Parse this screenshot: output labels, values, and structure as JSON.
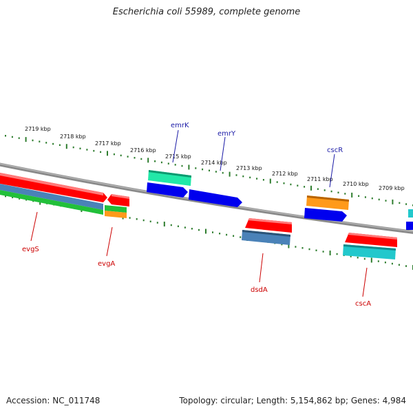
{
  "title": "Escherichia coli 55989, complete genome",
  "footer": {
    "accession": "Accession: NC_011748",
    "summary": "Topology: circular; Length: 5,154,862 bp; Genes: 4,984"
  },
  "colors": {
    "backbone": "#8a8a8a",
    "tick": "#2e7d2e",
    "red_label": "#cc0000",
    "blue_label": "#1a1aa6",
    "red": "#ff0000",
    "blue": "#0000ee",
    "green": "#22c03a",
    "teal": "#22e8a8",
    "steel": "#4a82b8",
    "orange": "#ff9a1a",
    "cyan": "#22c8cc"
  },
  "scale_labels": [
    "2719 kbp",
    "2718 kbp",
    "2717 kbp",
    "2716 kbp",
    "2715 kbp",
    "2714 kbp",
    "2713 kbp",
    "2712 kbp",
    "2711 kbp",
    "2710 kbp",
    "2709 kbp"
  ],
  "gene_labels": [
    "emrK",
    "emrY",
    "cscR",
    "evgS",
    "evgA",
    "dsdA",
    "cscA"
  ]
}
